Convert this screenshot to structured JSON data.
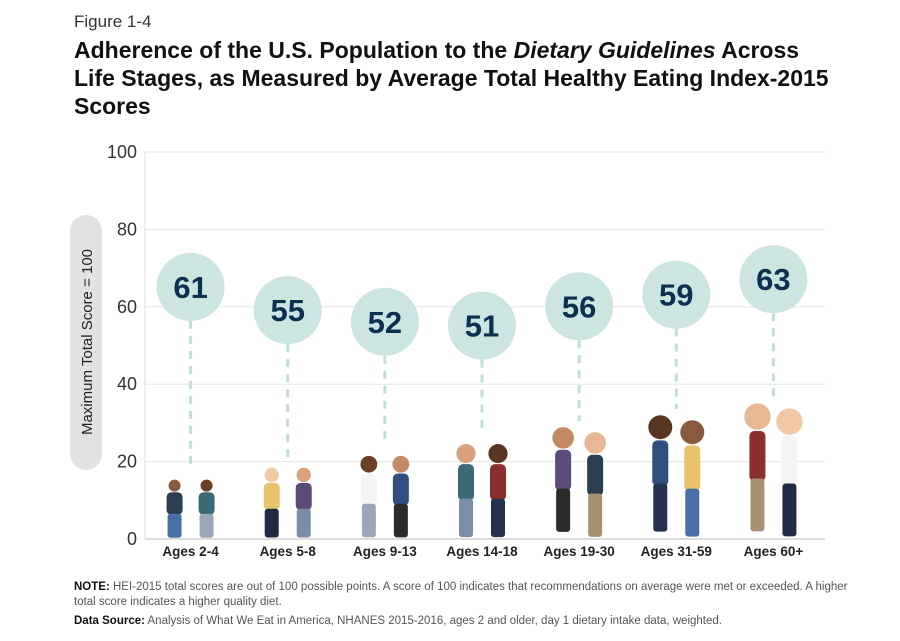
{
  "figure_label": "Figure 1-4",
  "title_part1": "Adherence of the U.S. Population to the ",
  "title_italic": "Dietary Guidelines",
  "title_part2": " Across Life Stages, as Measured by Average Total Healthy Eating Index-2015 Scores",
  "note_label": "NOTE:",
  "note_text": " HEI-2015 total scores are out of 100 possible points. A score of 100 indicates that recommendations on average were met or exceeded. A higher total score indicates a higher quality diet.",
  "source_label": "Data Source:",
  "source_text": " Analysis of What We Eat in America, NHANES 2015-2016, ages 2 and older, day 1 dietary intake data, weighted.",
  "colors": {
    "bubble": "#cde5e0",
    "bubble_text": "#0d3050",
    "dash": "#bfe0d8",
    "grid": "#e6e6e6",
    "label_pill": "#e2e2e2"
  },
  "chart_data": {
    "type": "scatter",
    "marker": "bubble with dashed stem, illustrated people per age group",
    "categories": [
      "Ages 2-4",
      "Ages 5-8",
      "Ages 9-13",
      "Ages 14-18",
      "Ages 19-30",
      "Ages 31-59",
      "Ages 60+"
    ],
    "values": [
      61,
      55,
      52,
      51,
      56,
      59,
      63
    ],
    "ylabel": "Maximum Total Score = 100",
    "ylim": [
      0,
      100
    ],
    "yticks": [
      0,
      20,
      40,
      60,
      80,
      100
    ],
    "grid": true
  }
}
